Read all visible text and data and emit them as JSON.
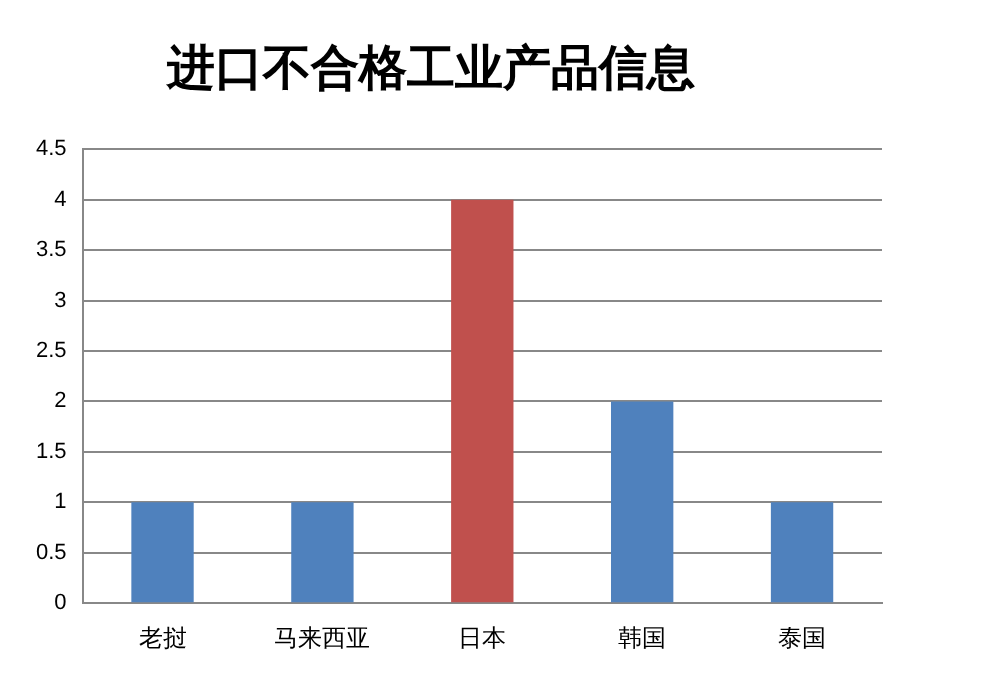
{
  "chart_data": {
    "type": "bar",
    "title": "进口不合格工业产品信息",
    "categories": [
      "老挝",
      "马来西亚",
      "日本",
      "韩国",
      "泰国"
    ],
    "values": [
      1,
      1,
      4,
      2,
      1
    ],
    "colors": [
      "#4f81bd",
      "#4f81bd",
      "#c0504d",
      "#4f81bd",
      "#4f81bd"
    ],
    "ylim": [
      0,
      4.5
    ],
    "yticks": [
      0,
      0.5,
      1,
      1.5,
      2,
      2.5,
      3,
      3.5,
      4,
      4.5
    ],
    "grid": "y",
    "legend": false
  }
}
